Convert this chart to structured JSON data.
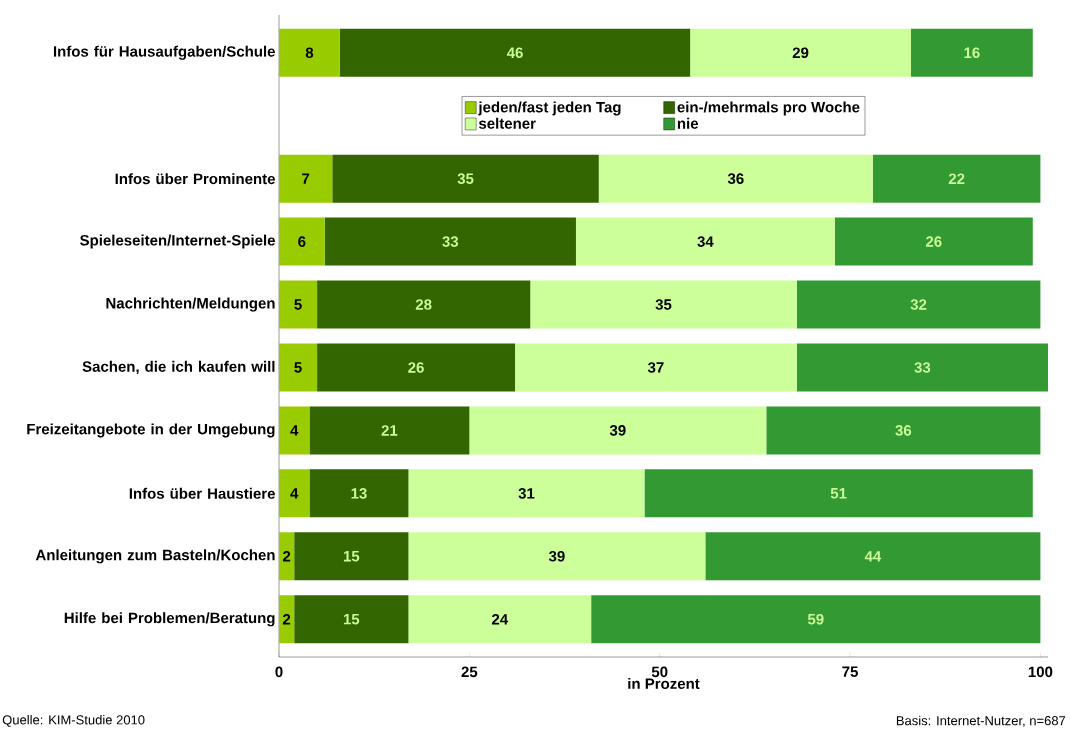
{
  "chart_data": {
    "type": "bar",
    "orientation": "horizontal",
    "stacked": true,
    "data_labels": true,
    "legend": "top",
    "xlabel": "in Prozent",
    "xlim": [
      0,
      101
    ],
    "xticks": [
      0,
      25,
      50,
      75,
      100
    ],
    "categories": [
      "Infos für Hausaufgaben/Schule",
      null,
      "Infos über Prominente",
      "Spieleseiten/Internet-Spiele",
      "Nachrichten/Meldungen",
      "Sachen, die ich kaufen will",
      "Freizeitangebote in der Umgebung",
      "Infos über Haustiere",
      "Anleitungen zum Basteln/Kochen",
      "Hilfe bei Problemen/Beratung"
    ],
    "series": [
      {
        "name": "jeden/fast jeden Tag",
        "color": "#99cc00",
        "values": [
          8,
          null,
          7,
          6,
          5,
          5,
          4,
          4,
          2,
          2
        ]
      },
      {
        "name": "ein-/mehrmals pro Woche",
        "color": "#336600",
        "values": [
          46,
          null,
          35,
          33,
          28,
          26,
          21,
          13,
          15,
          15
        ]
      },
      {
        "name": "seltener",
        "color": "#ccff99",
        "values": [
          29,
          null,
          36,
          34,
          35,
          37,
          39,
          31,
          39,
          24
        ]
      },
      {
        "name": "nie",
        "color": "#339933",
        "values": [
          16,
          null,
          22,
          26,
          32,
          33,
          36,
          51,
          44,
          59
        ]
      }
    ],
    "annotations": [
      "Quelle: KIM-Studie 2010",
      "Basis: Internet-Nutzer, n=687"
    ]
  }
}
